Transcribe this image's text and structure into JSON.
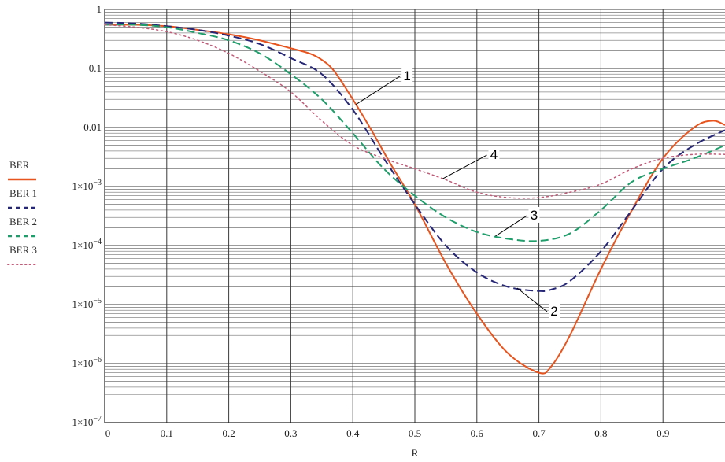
{
  "chart_data": {
    "type": "line",
    "xlabel": "R",
    "ylabel": "",
    "xlim": [
      0,
      1
    ],
    "ylim": [
      1e-07,
      1
    ],
    "y_scale": "log",
    "grid": true,
    "legend_position": "left",
    "x_ticks": [
      {
        "value": 0,
        "label": "0"
      },
      {
        "value": 0.1,
        "label": "0.1"
      },
      {
        "value": 0.2,
        "label": "0.2"
      },
      {
        "value": 0.3,
        "label": "0.3"
      },
      {
        "value": 0.4,
        "label": "0.4"
      },
      {
        "value": 0.5,
        "label": "0.5"
      },
      {
        "value": 0.6,
        "label": "0.6"
      },
      {
        "value": 0.7,
        "label": "0.7"
      },
      {
        "value": 0.8,
        "label": "0.8"
      },
      {
        "value": 0.9,
        "label": "0.9"
      }
    ],
    "y_ticks": [
      {
        "value": 1,
        "mant": "1",
        "exp": ""
      },
      {
        "value": 0.1,
        "mant": "0.1",
        "exp": ""
      },
      {
        "value": 0.01,
        "mant": "0.01",
        "exp": ""
      },
      {
        "value": 0.001,
        "mant": "1×10",
        "exp": "−3"
      },
      {
        "value": 0.0001,
        "mant": "1×10",
        "exp": "−4"
      },
      {
        "value": 1e-05,
        "mant": "1×10",
        "exp": "−5"
      },
      {
        "value": 1e-06,
        "mant": "1×10",
        "exp": "−6"
      },
      {
        "value": 1e-07,
        "mant": "1×10",
        "exp": "−7"
      }
    ],
    "series": [
      {
        "name": "BER",
        "color": "#e8541e",
        "dash": "solid",
        "x": [
          0,
          0.05,
          0.1,
          0.15,
          0.2,
          0.25,
          0.3,
          0.33,
          0.35,
          0.37,
          0.4,
          0.43,
          0.46,
          0.5,
          0.55,
          0.6,
          0.65,
          0.7,
          0.72,
          0.75,
          0.8,
          0.85,
          0.9,
          0.95,
          0.98,
          1.0
        ],
        "values": [
          0.55,
          0.55,
          0.52,
          0.45,
          0.38,
          0.3,
          0.22,
          0.18,
          0.14,
          0.09,
          0.03,
          0.009,
          0.0025,
          0.0005,
          5e-05,
          7e-06,
          1.5e-06,
          7e-07,
          9e-07,
          3e-06,
          4e-05,
          0.0004,
          0.003,
          0.01,
          0.013,
          0.011
        ]
      },
      {
        "name": "BER 1",
        "color": "#262677",
        "dash": "dashed",
        "x": [
          0,
          0.05,
          0.1,
          0.15,
          0.2,
          0.25,
          0.3,
          0.35,
          0.4,
          0.45,
          0.5,
          0.55,
          0.6,
          0.65,
          0.7,
          0.72,
          0.75,
          0.8,
          0.85,
          0.9,
          0.95,
          1.0
        ],
        "values": [
          0.6,
          0.58,
          0.52,
          0.45,
          0.36,
          0.26,
          0.15,
          0.08,
          0.02,
          0.003,
          0.0005,
          0.0001,
          3.5e-05,
          2e-05,
          1.7e-05,
          1.8e-05,
          2.5e-05,
          8e-05,
          0.0004,
          0.002,
          0.005,
          0.009
        ]
      },
      {
        "name": "BER 2",
        "color": "#1f9e6b",
        "dash": "dashed",
        "x": [
          0,
          0.05,
          0.1,
          0.15,
          0.2,
          0.25,
          0.3,
          0.35,
          0.4,
          0.45,
          0.5,
          0.55,
          0.6,
          0.65,
          0.7,
          0.75,
          0.8,
          0.85,
          0.9,
          0.95,
          1.0
        ],
        "values": [
          0.55,
          0.55,
          0.5,
          0.4,
          0.3,
          0.18,
          0.08,
          0.03,
          0.008,
          0.002,
          0.0007,
          0.0003,
          0.00017,
          0.00013,
          0.00012,
          0.00016,
          0.0004,
          0.0012,
          0.002,
          0.003,
          0.005
        ]
      },
      {
        "name": "BER 3",
        "color": "#c25a78",
        "dash": "dotted",
        "x": [
          0,
          0.05,
          0.1,
          0.15,
          0.2,
          0.25,
          0.3,
          0.35,
          0.4,
          0.45,
          0.5,
          0.55,
          0.6,
          0.65,
          0.7,
          0.75,
          0.8,
          0.85,
          0.9,
          0.95,
          1.0
        ],
        "values": [
          0.55,
          0.5,
          0.42,
          0.3,
          0.18,
          0.09,
          0.04,
          0.013,
          0.005,
          0.003,
          0.002,
          0.0013,
          0.0008,
          0.00065,
          0.00065,
          0.0008,
          0.0011,
          0.002,
          0.003,
          0.0035,
          0.0035
        ]
      }
    ],
    "annotations": [
      {
        "label": "1",
        "series": 0,
        "at_x": 0.405
      },
      {
        "label": "2",
        "series": 1,
        "at_x": 0.665
      },
      {
        "label": "3",
        "series": 2,
        "at_x": 0.63
      },
      {
        "label": "4",
        "series": 3,
        "at_x": 0.545
      }
    ]
  }
}
